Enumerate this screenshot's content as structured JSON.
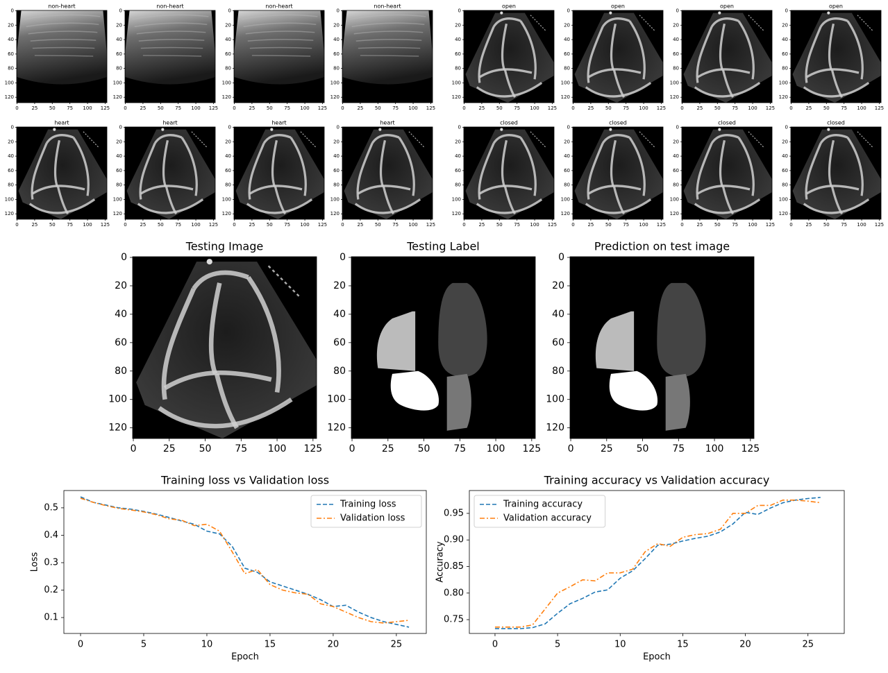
{
  "chart_data": [
    {
      "type": "image",
      "title": "non-heart",
      "xlim": [
        -0.5,
        127.5
      ],
      "ylim": [
        127.5,
        -0.5
      ],
      "xticks": [
        0,
        25,
        50,
        75,
        100,
        125
      ],
      "yticks": [
        0,
        20,
        40,
        60,
        80,
        100,
        120
      ]
    },
    {
      "type": "image",
      "title": "non-heart",
      "xlim": [
        -0.5,
        127.5
      ],
      "ylim": [
        127.5,
        -0.5
      ],
      "xticks": [
        0,
        25,
        50,
        75,
        100,
        125
      ],
      "yticks": [
        0,
        20,
        40,
        60,
        80,
        100,
        120
      ]
    },
    {
      "type": "image",
      "title": "non-heart",
      "xlim": [
        -0.5,
        127.5
      ],
      "ylim": [
        127.5,
        -0.5
      ],
      "xticks": [
        0,
        25,
        50,
        75,
        100,
        125
      ],
      "yticks": [
        0,
        20,
        40,
        60,
        80,
        100,
        120
      ]
    },
    {
      "type": "image",
      "title": "non-heart",
      "xlim": [
        -0.5,
        127.5
      ],
      "ylim": [
        127.5,
        -0.5
      ],
      "xticks": [
        0,
        25,
        50,
        75,
        100,
        125
      ],
      "yticks": [
        0,
        20,
        40,
        60,
        80,
        100,
        120
      ]
    },
    {
      "type": "image",
      "title": "open",
      "xlim": [
        -0.5,
        127.5
      ],
      "ylim": [
        127.5,
        -0.5
      ],
      "xticks": [
        0,
        25,
        50,
        75,
        100,
        125
      ],
      "yticks": [
        0,
        20,
        40,
        60,
        80,
        100,
        120
      ]
    },
    {
      "type": "image",
      "title": "open",
      "xlim": [
        -0.5,
        127.5
      ],
      "ylim": [
        127.5,
        -0.5
      ],
      "xticks": [
        0,
        25,
        50,
        75,
        100,
        125
      ],
      "yticks": [
        0,
        20,
        40,
        60,
        80,
        100,
        120
      ]
    },
    {
      "type": "image",
      "title": "open",
      "xlim": [
        -0.5,
        127.5
      ],
      "ylim": [
        127.5,
        -0.5
      ],
      "xticks": [
        0,
        25,
        50,
        75,
        100,
        125
      ],
      "yticks": [
        0,
        20,
        40,
        60,
        80,
        100,
        120
      ]
    },
    {
      "type": "image",
      "title": "open",
      "xlim": [
        -0.5,
        127.5
      ],
      "ylim": [
        127.5,
        -0.5
      ],
      "xticks": [
        0,
        25,
        50,
        75,
        100,
        125
      ],
      "yticks": [
        0,
        20,
        40,
        60,
        80,
        100,
        120
      ]
    },
    {
      "type": "image",
      "title": "heart",
      "xlim": [
        -0.5,
        127.5
      ],
      "ylim": [
        127.5,
        -0.5
      ],
      "xticks": [
        0,
        25,
        50,
        75,
        100,
        125
      ],
      "yticks": [
        0,
        20,
        40,
        60,
        80,
        100,
        120
      ]
    },
    {
      "type": "image",
      "title": "heart",
      "xlim": [
        -0.5,
        127.5
      ],
      "ylim": [
        127.5,
        -0.5
      ],
      "xticks": [
        0,
        25,
        50,
        75,
        100,
        125
      ],
      "yticks": [
        0,
        20,
        40,
        60,
        80,
        100,
        120
      ]
    },
    {
      "type": "image",
      "title": "heart",
      "xlim": [
        -0.5,
        127.5
      ],
      "ylim": [
        127.5,
        -0.5
      ],
      "xticks": [
        0,
        25,
        50,
        75,
        100,
        125
      ],
      "yticks": [
        0,
        20,
        40,
        60,
        80,
        100,
        120
      ]
    },
    {
      "type": "image",
      "title": "heart",
      "xlim": [
        -0.5,
        127.5
      ],
      "ylim": [
        127.5,
        -0.5
      ],
      "xticks": [
        0,
        25,
        50,
        75,
        100,
        125
      ],
      "yticks": [
        0,
        20,
        40,
        60,
        80,
        100,
        120
      ]
    },
    {
      "type": "image",
      "title": "closed",
      "xlim": [
        -0.5,
        127.5
      ],
      "ylim": [
        127.5,
        -0.5
      ],
      "xticks": [
        0,
        25,
        50,
        75,
        100,
        125
      ],
      "yticks": [
        0,
        20,
        40,
        60,
        80,
        100,
        120
      ]
    },
    {
      "type": "image",
      "title": "closed",
      "xlim": [
        -0.5,
        127.5
      ],
      "ylim": [
        127.5,
        -0.5
      ],
      "xticks": [
        0,
        25,
        50,
        75,
        100,
        125
      ],
      "yticks": [
        0,
        20,
        40,
        60,
        80,
        100,
        120
      ]
    },
    {
      "type": "image",
      "title": "closed",
      "xlim": [
        -0.5,
        127.5
      ],
      "ylim": [
        127.5,
        -0.5
      ],
      "xticks": [
        0,
        25,
        50,
        75,
        100,
        125
      ],
      "yticks": [
        0,
        20,
        40,
        60,
        80,
        100,
        120
      ]
    },
    {
      "type": "image",
      "title": "closed",
      "xlim": [
        -0.5,
        127.5
      ],
      "ylim": [
        127.5,
        -0.5
      ],
      "xticks": [
        0,
        25,
        50,
        75,
        100,
        125
      ],
      "yticks": [
        0,
        20,
        40,
        60,
        80,
        100,
        120
      ]
    },
    {
      "type": "image",
      "title": "Testing Image",
      "xlim": [
        -0.5,
        127.5
      ],
      "ylim": [
        127.5,
        -0.5
      ],
      "xticks": [
        0,
        25,
        50,
        75,
        100,
        125
      ],
      "yticks": [
        0,
        20,
        40,
        60,
        80,
        100,
        120
      ]
    },
    {
      "type": "image",
      "title": "Testing Label",
      "xlim": [
        -0.5,
        127.5
      ],
      "ylim": [
        127.5,
        -0.5
      ],
      "xticks": [
        0,
        25,
        50,
        75,
        100,
        125
      ],
      "yticks": [
        0,
        20,
        40,
        60,
        80,
        100,
        120
      ]
    },
    {
      "type": "image",
      "title": "Prediction on test image",
      "xlim": [
        -0.5,
        127.5
      ],
      "ylim": [
        127.5,
        -0.5
      ],
      "xticks": [
        0,
        25,
        50,
        75,
        100,
        125
      ],
      "yticks": [
        0,
        20,
        40,
        60,
        80,
        100,
        120
      ]
    },
    {
      "type": "line",
      "title": "Training loss vs Validation loss",
      "x_label": "Epoch",
      "y_label": "Loss",
      "x": [
        0,
        1,
        2,
        3,
        4,
        5,
        6,
        7,
        8,
        9,
        10,
        11,
        12,
        13,
        14,
        15,
        16,
        17,
        18,
        19,
        20,
        21,
        22,
        23,
        24,
        25,
        26
      ],
      "series": [
        {
          "name": "Training loss",
          "color": "#1f77b4",
          "linestyle": "dashed",
          "values": [
            0.54,
            0.52,
            0.51,
            0.5,
            0.495,
            0.487,
            0.477,
            0.465,
            0.452,
            0.44,
            0.415,
            0.405,
            0.36,
            0.28,
            0.265,
            0.23,
            0.215,
            0.2,
            0.185,
            0.165,
            0.14,
            0.145,
            0.12,
            0.1,
            0.085,
            0.075,
            0.065
          ]
        },
        {
          "name": "Validation loss",
          "color": "#ff7f0e",
          "linestyle": "dashdot",
          "values": [
            0.535,
            0.52,
            0.508,
            0.498,
            0.492,
            0.485,
            0.475,
            0.46,
            0.455,
            0.435,
            0.44,
            0.415,
            0.34,
            0.26,
            0.275,
            0.22,
            0.2,
            0.19,
            0.185,
            0.15,
            0.14,
            0.12,
            0.1,
            0.085,
            0.08,
            0.085,
            0.09
          ]
        }
      ],
      "xlim": [
        -1.32,
        27.37
      ],
      "ylim": [
        0.042,
        0.563
      ],
      "xticks": [
        0,
        5,
        10,
        15,
        20,
        25
      ],
      "yticks": [
        0.1,
        0.2,
        0.3,
        0.4,
        0.5
      ],
      "legend": "upper right"
    },
    {
      "type": "line",
      "title": "Training accuracy vs Validation accuracy",
      "x_label": "Epoch",
      "y_label": "Accuracy",
      "x": [
        0,
        1,
        2,
        3,
        4,
        5,
        6,
        7,
        8,
        9,
        10,
        11,
        12,
        13,
        14,
        15,
        16,
        17,
        18,
        19,
        20,
        21,
        22,
        23,
        24,
        25,
        26
      ],
      "series": [
        {
          "name": "Training accuracy",
          "color": "#1f77b4",
          "linestyle": "dashed",
          "values": [
            0.733,
            0.733,
            0.733,
            0.735,
            0.742,
            0.762,
            0.78,
            0.79,
            0.802,
            0.806,
            0.828,
            0.842,
            0.865,
            0.89,
            0.892,
            0.898,
            0.903,
            0.907,
            0.915,
            0.93,
            0.952,
            0.948,
            0.96,
            0.97,
            0.975,
            0.978,
            0.98
          ]
        },
        {
          "name": "Validation accuracy",
          "color": "#ff7f0e",
          "linestyle": "dashdot",
          "values": [
            0.736,
            0.736,
            0.736,
            0.74,
            0.77,
            0.8,
            0.812,
            0.825,
            0.823,
            0.838,
            0.838,
            0.845,
            0.878,
            0.893,
            0.888,
            0.905,
            0.91,
            0.912,
            0.92,
            0.95,
            0.95,
            0.965,
            0.965,
            0.975,
            0.975,
            0.973,
            0.97
          ]
        }
      ],
      "xlim": [
        -2.05,
        27.9
      ],
      "ylim": [
        0.724,
        0.993
      ],
      "xticks": [
        0,
        5,
        10,
        15,
        20,
        25
      ],
      "yticks": [
        0.75,
        {
          "value": 0.8,
          "label": "0.80"
        },
        0.85,
        {
          "value": 0.9,
          "label": "0.90"
        },
        0.95
      ],
      "legend": "upper left"
    }
  ]
}
